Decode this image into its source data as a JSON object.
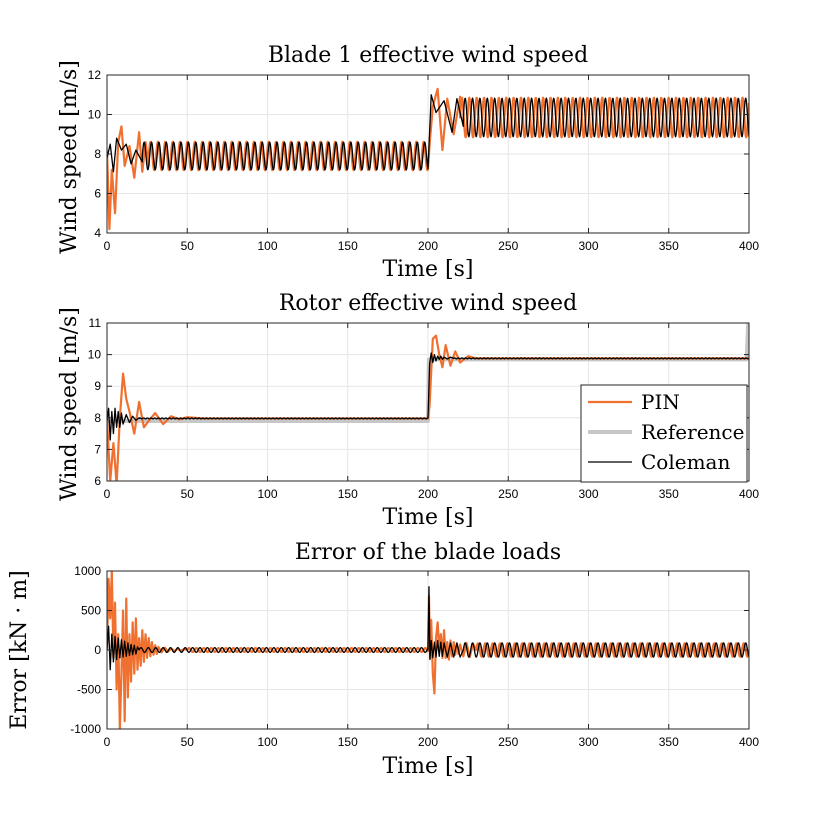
{
  "colors": {
    "pin": "#f0712f",
    "reference": "#c7c7c7",
    "coleman": "#000000"
  },
  "chart_data": [
    {
      "type": "line",
      "title": "Blade 1 effective wind speed",
      "xlabel": "Time [s]",
      "ylabel": "Wind speed [m/s]",
      "xlim": [
        0,
        400
      ],
      "ylim": [
        4,
        12
      ],
      "xticks": [
        0,
        50,
        100,
        150,
        200,
        250,
        300,
        350,
        400
      ],
      "yticks": [
        4,
        6,
        8,
        10,
        12
      ],
      "grid": true,
      "series": [
        {
          "key": "pin",
          "x": [
            0,
            1.5,
            3,
            5,
            7,
            9,
            11,
            14,
            17,
            20,
            22,
            24,
            26,
            200,
            201,
            203,
            206,
            209,
            212,
            216,
            220,
            400
          ],
          "y": [
            8.2,
            4.2,
            7.2,
            5.0,
            8.6,
            9.4,
            7.4,
            8.4,
            6.8,
            9.1,
            7.1,
            8.6,
            7.4,
            7.4,
            8.5,
            10.4,
            11.3,
            8.2,
            10.8,
            9.0,
            10.9,
            8.9
          ],
          "oscillation": [
            {
              "from": 26,
              "to": 200,
              "mean": 7.9,
              "amplitude": 0.72,
              "period": 4.6
            },
            {
              "from": 220,
              "to": 400,
              "mean": 9.85,
              "amplitude": 1.0,
              "period": 4.6
            }
          ]
        },
        {
          "key": "coleman",
          "x": [
            0,
            2,
            4,
            6,
            9,
            12,
            15,
            18,
            22,
            200,
            202,
            205,
            210,
            215,
            218,
            222
          ],
          "y": [
            7.8,
            8.5,
            7.1,
            8.8,
            8.2,
            8.5,
            7.5,
            8.2,
            7.6,
            7.7,
            11.0,
            10.1,
            10.7,
            9.1,
            10.8,
            9.4
          ],
          "oscillation": [
            {
              "from": 22,
              "to": 200,
              "mean": 7.9,
              "amplitude": 0.7,
              "period": 4.6
            },
            {
              "from": 222,
              "to": 400,
              "mean": 9.85,
              "amplitude": 0.98,
              "period": 4.6
            }
          ]
        }
      ]
    },
    {
      "type": "line",
      "title": "Rotor effective wind speed",
      "xlabel": "Time [s]",
      "ylabel": "Wind speed [m/s]",
      "xlim": [
        0,
        400
      ],
      "ylim": [
        6,
        11
      ],
      "xticks": [
        0,
        50,
        100,
        150,
        200,
        250,
        300,
        350,
        400
      ],
      "yticks": [
        6,
        7,
        8,
        9,
        10,
        11
      ],
      "grid": true,
      "legend": {
        "position": "right",
        "entries": [
          {
            "key": "pin",
            "label": "PIN"
          },
          {
            "key": "reference",
            "label": "Reference"
          },
          {
            "key": "coleman",
            "label": "Coleman"
          }
        ]
      },
      "series": [
        {
          "key": "reference",
          "x": [
            0,
            200,
            200.5,
            398.5,
            399.5,
            400
          ],
          "y": [
            7.9,
            7.9,
            9.85,
            9.85,
            11.0,
            11.0
          ]
        },
        {
          "key": "pin",
          "x": [
            0,
            2,
            4,
            6,
            8,
            10,
            12,
            14,
            17,
            20,
            23,
            26,
            30,
            35,
            40,
            45,
            50,
            60,
            200,
            201,
            203,
            205,
            207,
            209,
            211,
            214,
            217,
            220,
            225,
            230,
            400
          ],
          "y": [
            8.0,
            6.0,
            7.2,
            5.9,
            8.0,
            9.4,
            8.6,
            8.2,
            7.5,
            8.5,
            7.7,
            7.9,
            8.15,
            7.8,
            8.05,
            7.95,
            8.02,
            7.98,
            7.98,
            8.4,
            10.5,
            10.6,
            10.0,
            9.6,
            10.3,
            9.65,
            10.1,
            9.75,
            9.95,
            9.88,
            9.88
          ]
        },
        {
          "key": "coleman",
          "x": [
            0,
            1,
            2,
            3,
            4,
            5,
            6,
            7,
            8,
            9,
            10,
            12,
            14,
            16,
            18,
            20,
            200,
            201,
            202,
            203,
            204,
            205,
            206,
            207,
            208,
            209,
            210,
            212,
            214,
            216,
            400
          ],
          "y": [
            7.9,
            8.3,
            7.3,
            8.2,
            7.5,
            8.3,
            7.7,
            8.2,
            7.7,
            8.15,
            7.8,
            8.1,
            7.85,
            8.05,
            7.92,
            8.0,
            8.0,
            9.7,
            10.05,
            9.75,
            10.0,
            9.8,
            9.95,
            9.85,
            9.95,
            9.85,
            9.92,
            9.86,
            9.92,
            9.88,
            9.88
          ],
          "oscillation": [
            {
              "from": 20,
              "to": 200,
              "mean": 7.98,
              "amplitude": 0.015,
              "period": 2.3
            },
            {
              "from": 216,
              "to": 400,
              "mean": 9.88,
              "amplitude": 0.015,
              "period": 2.3
            }
          ]
        }
      ]
    },
    {
      "type": "line",
      "title": "Error of the blade loads",
      "xlabel": "Time [s]",
      "ylabel": "Error [kN · m]",
      "xlim": [
        0,
        400
      ],
      "ylim": [
        -1000,
        1000
      ],
      "xticks": [
        0,
        50,
        100,
        150,
        200,
        250,
        300,
        350,
        400
      ],
      "yticks": [
        -1000,
        -500,
        0,
        500,
        1000
      ],
      "grid": true,
      "series": [
        {
          "key": "pin",
          "x": [
            0,
            1,
            2,
            3,
            4,
            5,
            6,
            7,
            8,
            9,
            10,
            11,
            12,
            13,
            14,
            15,
            16,
            17,
            18,
            19,
            20,
            21,
            22,
            23,
            24,
            25,
            26,
            27,
            28,
            29,
            30,
            31,
            32,
            34,
            36,
            38,
            40,
            42,
            44,
            46,
            48,
            50
          ],
          "y": [
            0,
            900,
            400,
            1000,
            -100,
            600,
            -500,
            200,
            -1000,
            -300,
            500,
            -900,
            650,
            -600,
            200,
            -400,
            350,
            -300,
            400,
            -250,
            150,
            -200,
            250,
            -150,
            200,
            -100,
            150,
            -80,
            100,
            -60,
            60,
            -50,
            40,
            -30,
            30,
            -20,
            20,
            -15,
            15,
            -10,
            10,
            0
          ],
          "oscillation": [
            {
              "from": 50,
              "to": 200,
              "mean": 0,
              "amplitude": 25,
              "period": 4.6
            },
            {
              "from": 230,
              "to": 400,
              "mean": 0,
              "amplitude": 85,
              "period": 4.6
            }
          ],
          "x2": [
            200,
            200.6,
            201.3,
            202,
            203,
            204,
            205,
            206,
            207,
            208,
            209,
            210,
            211,
            212,
            213,
            214,
            215,
            216,
            217,
            218,
            219,
            220,
            222,
            224,
            226,
            228,
            230
          ],
          "y2": [
            0,
            680,
            -100,
            380,
            -300,
            -550,
            150,
            350,
            20,
            200,
            -100,
            250,
            -100,
            100,
            -120,
            120,
            -80,
            100,
            -60,
            80,
            -50,
            70,
            -80,
            90,
            -90,
            80,
            0
          ]
        },
        {
          "key": "coleman",
          "x": [
            0,
            1,
            2,
            3,
            4,
            5,
            6,
            7,
            8,
            9,
            10,
            11,
            12,
            13,
            14,
            15,
            16,
            17,
            18,
            19,
            20
          ],
          "y": [
            0,
            300,
            -250,
            200,
            -150,
            170,
            -120,
            150,
            -100,
            130,
            -90,
            110,
            -80,
            90,
            -70,
            70,
            -60,
            60,
            -50,
            40,
            0
          ],
          "oscillation": [
            {
              "from": 20,
              "to": 200,
              "mean": 0,
              "amplitude": 30,
              "period": 4.6
            },
            {
              "from": 222,
              "to": 400,
              "mean": 0,
              "amplitude": 90,
              "period": 4.6
            }
          ],
          "x2": [
            200,
            200.6,
            201.2,
            202,
            203,
            204,
            205,
            206,
            207,
            208,
            209,
            210,
            212,
            214,
            216,
            218,
            220,
            222
          ],
          "y2": [
            0,
            800,
            -120,
            120,
            -100,
            100,
            -90,
            120,
            -80,
            100,
            -80,
            90,
            -90,
            90,
            -90,
            90,
            -90,
            0
          ]
        }
      ]
    }
  ]
}
